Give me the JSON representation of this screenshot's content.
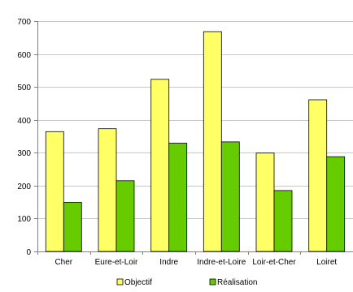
{
  "chart_data": {
    "type": "bar",
    "categories": [
      "Cher",
      "Eure-et-Loir",
      "Indre",
      "Indre-et-Loire",
      "Loir-et-Cher",
      "Loiret"
    ],
    "series": [
      {
        "name": "Objectif",
        "values": [
          364,
          373,
          523,
          668,
          299,
          461
        ],
        "color": "#ffff66"
      },
      {
        "name": "Réalisation",
        "values": [
          149,
          215,
          329,
          333,
          185,
          288
        ],
        "color": "#66cc00"
      }
    ],
    "title": "",
    "xlabel": "",
    "ylabel": "",
    "ylim": [
      0,
      700
    ],
    "yticks": [
      0,
      100,
      200,
      300,
      400,
      500,
      600,
      700
    ],
    "grid": true,
    "legend_position": "bottom"
  }
}
